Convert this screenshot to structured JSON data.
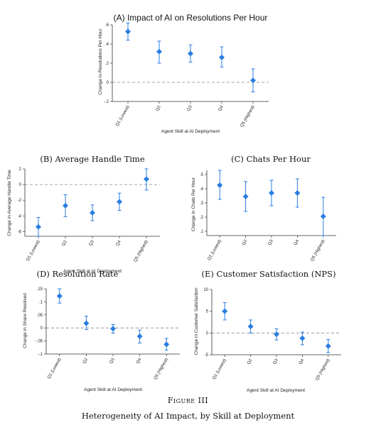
{
  "figure": {
    "label": "Figure III",
    "caption": "Heterogeneity of AI Impact, by Skill at Deployment"
  },
  "colors": {
    "marker": "#2a7de1",
    "ref_line": "#888888",
    "axis": "#333333"
  },
  "chart_data": [
    {
      "id": "A",
      "type": "scatter",
      "style": "point-with-error-bars",
      "title": "(A) Impact of AI on Resolutions Per Hour",
      "xlabel": "Agent Skill at AI Deployment",
      "ylabel": "Change in Resolutions Per Hour",
      "categories": [
        "Q1 (Lowest)",
        "Q2",
        "Q3",
        "Q4",
        "Q5 (Highest)"
      ],
      "values": [
        0.53,
        0.32,
        0.3,
        0.26,
        0.02
      ],
      "ci_low": [
        0.44,
        0.2,
        0.21,
        0.16,
        -0.1
      ],
      "ci_high": [
        0.62,
        0.43,
        0.39,
        0.37,
        0.14
      ],
      "ylim": [
        -0.2,
        0.6
      ],
      "yticks": [
        -0.2,
        0,
        0.2,
        0.4,
        0.6
      ],
      "ytick_labels": [
        "-.2",
        "0",
        ".2",
        ".4",
        ".6"
      ],
      "reference_line": 0,
      "grid": false
    },
    {
      "id": "B",
      "type": "scatter",
      "style": "point-with-error-bars",
      "title": "(B) Average Handle Time",
      "xlabel": "Agent Skill at AI Deployment",
      "ylabel": "Change in Average Handle Time",
      "categories": [
        "Q1 (Lowest)",
        "Q2",
        "Q3",
        "Q4",
        "Q5 (Highest)"
      ],
      "values": [
        -5.4,
        -2.7,
        -3.6,
        -2.2,
        0.7
      ],
      "ci_low": [
        -6.6,
        -4.1,
        -4.6,
        -3.3,
        -0.7
      ],
      "ci_high": [
        -4.2,
        -1.3,
        -2.6,
        -1.1,
        2.0
      ],
      "ylim": [
        -6.6,
        2.0
      ],
      "yticks": [
        -6,
        -4,
        -2,
        0,
        2
      ],
      "ytick_labels": [
        "-6",
        "-4",
        "-2",
        "0",
        "2"
      ],
      "reference_line": 0,
      "grid": false
    },
    {
      "id": "C",
      "type": "scatter",
      "style": "point-with-error-bars",
      "title": "(C) Chats Per Hour",
      "xlabel": "",
      "ylabel": "Change in Chats Per Hour",
      "categories": [
        "Q1 (Lowest)",
        "Q2",
        "Q3",
        "Q4",
        "Q5 (Highest)"
      ],
      "values": [
        0.425,
        0.345,
        0.37,
        0.37,
        0.205
      ],
      "ci_low": [
        0.325,
        0.24,
        0.28,
        0.27,
        0.07
      ],
      "ci_high": [
        0.53,
        0.45,
        0.46,
        0.47,
        0.34
      ],
      "ylim": [
        0.07,
        0.53
      ],
      "yticks": [
        0.1,
        0.2,
        0.3,
        0.4,
        0.5
      ],
      "ytick_labels": [
        ".1",
        ".2",
        ".3",
        ".4",
        ".5"
      ],
      "reference_line": null,
      "grid": false
    },
    {
      "id": "D",
      "type": "scatter",
      "style": "point-with-error-bars",
      "title": "(D) Resolution Rate",
      "xlabel": "Agent Skill at AI Deployment",
      "ylabel": "Change in Share Resolved",
      "categories": [
        "Q1 (Lowest)",
        "Q2",
        "Q3",
        "Q4",
        "Q5 (Highest)"
      ],
      "values": [
        0.122,
        0.018,
        -0.003,
        -0.032,
        -0.063
      ],
      "ci_low": [
        0.095,
        -0.006,
        -0.02,
        -0.058,
        -0.085
      ],
      "ci_high": [
        0.15,
        0.045,
        0.013,
        -0.008,
        -0.04
      ],
      "ylim": [
        -0.1,
        0.15
      ],
      "yticks": [
        -0.1,
        -0.05,
        0,
        0.05,
        0.1,
        0.15
      ],
      "ytick_labels": [
        "-.1",
        "-.05",
        "0",
        ".05",
        ".1",
        ".15"
      ],
      "reference_line": 0,
      "grid": false
    },
    {
      "id": "E",
      "type": "scatter",
      "style": "point-with-error-bars",
      "title": "(E) Customer Satisfaction (NPS)",
      "xlabel": "Agent Skill at AI Deployment",
      "ylabel": "Change in Customer Satisfaction",
      "categories": [
        "Q1 (Lowest)",
        "Q2",
        "Q3",
        "Q4",
        "Q5 (Highest)"
      ],
      "values": [
        5.0,
        1.5,
        -0.3,
        -1.2,
        -3.0
      ],
      "ci_low": [
        3.0,
        0.0,
        -1.6,
        -2.7,
        -4.5
      ],
      "ci_high": [
        7.0,
        3.0,
        1.0,
        0.2,
        -1.5
      ],
      "ylim": [
        -5,
        10
      ],
      "yticks": [
        -5,
        0,
        5,
        10
      ],
      "ytick_labels": [
        "-5",
        "0",
        "5",
        "10"
      ],
      "reference_line": 0,
      "grid": false
    }
  ]
}
